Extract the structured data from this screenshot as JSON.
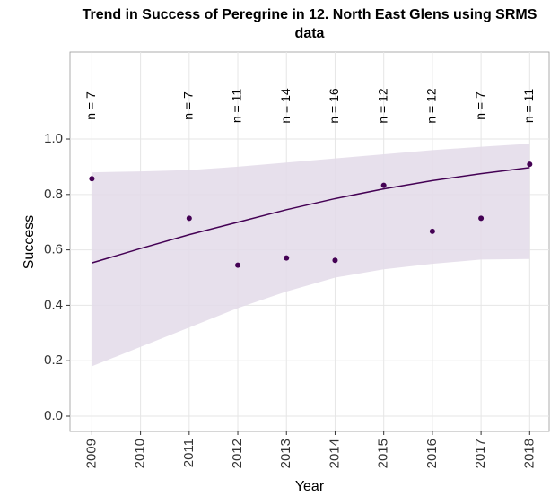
{
  "chart_data": {
    "type": "scatter",
    "title": "Trend in Success of Peregrine in 12. North East Glens using SRMS data",
    "x_label": "Year",
    "y_label": "Success",
    "x": [
      2009,
      2011,
      2012,
      2013,
      2014,
      2015,
      2016,
      2017,
      2018
    ],
    "values": [
      0.857,
      0.714,
      0.545,
      0.571,
      0.5625,
      0.833,
      0.667,
      0.714,
      0.909
    ],
    "color": "#440154",
    "labels": [
      "n = 7",
      "n = 7",
      "n = 11",
      "n = 14",
      "n = 16",
      "n = 12",
      "n = 12",
      "n = 7",
      "n = 11"
    ],
    "fit": {
      "x": [
        2009,
        2010,
        2011,
        2012,
        2013,
        2014,
        2015,
        2016,
        2017,
        2018
      ],
      "values": [
        0.553,
        0.605,
        0.655,
        0.7,
        0.745,
        0.785,
        0.82,
        0.85,
        0.875,
        0.897
      ],
      "lower": [
        0.18,
        0.25,
        0.32,
        0.39,
        0.45,
        0.5,
        0.53,
        0.55,
        0.565,
        0.567
      ],
      "upper": [
        0.88,
        0.883,
        0.888,
        0.9,
        0.915,
        0.93,
        0.945,
        0.96,
        0.972,
        0.983
      ],
      "color": "#440154",
      "fill": "#e3dbe9"
    },
    "xlim": [
      2008.55,
      2018.4
    ],
    "xticks": [
      2009,
      2010,
      2011,
      2012,
      2013,
      2014,
      2015,
      2016,
      2017,
      2018
    ],
    "ylim": [
      -0.055,
      1.314
    ],
    "yticks": [
      {
        "value": 0,
        "label": "0.0"
      },
      0.2,
      0.4,
      0.6,
      0.8,
      {
        "value": 1,
        "label": "1.0"
      }
    ],
    "grid": true
  }
}
